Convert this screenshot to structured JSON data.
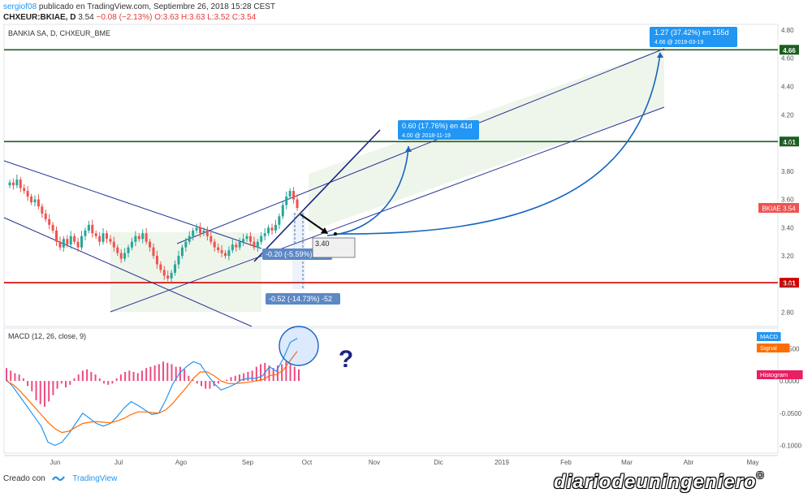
{
  "header": {
    "author": "sergiof08",
    "published": "publicado en TradingView.com, Septiembre 26, 2018 15:28 CEST",
    "symbol": "CHXEUR:BKIAE, D",
    "last": "3.54",
    "change": "−0.08 (−2.13%)",
    "ohlc": "O:3.63 H:3.63 L:3.52 C:3.54"
  },
  "footer": {
    "prefix": "Creado con",
    "brand": "TradingView"
  },
  "watermark": {
    "text": "diariodeuningeniero",
    "mark": "®"
  },
  "chart_data": [
    {
      "type": "candlestick",
      "title": "BANKIA SA, D, CHXEUR_BME",
      "xlabel": "",
      "ylabel": "",
      "x_ticks": [
        "Jun",
        "Jul",
        "Ago",
        "Sep",
        "Oct",
        "Nov",
        "Dic",
        "2019",
        "Feb",
        "Mar",
        "Abr",
        "May"
      ],
      "y_ticks": [
        2.8,
        3.0,
        3.2,
        3.4,
        3.6,
        3.8,
        4.0,
        4.2,
        4.4,
        4.6,
        4.8
      ],
      "ylim": [
        2.7,
        4.84
      ],
      "grid": false,
      "last_price_label": "BKIAE",
      "last_price": 3.54,
      "horizontal_levels": [
        {
          "value": 4.66,
          "label": "4.66",
          "color": "#1b5e20"
        },
        {
          "value": 4.01,
          "label": "4.01",
          "color": "#1b5e20"
        },
        {
          "value": 3.01,
          "label": "3.01",
          "color": "#d50000"
        }
      ],
      "closes": [
        3.72,
        3.7,
        3.74,
        3.68,
        3.66,
        3.62,
        3.58,
        3.6,
        3.55,
        3.5,
        3.46,
        3.42,
        3.38,
        3.3,
        3.26,
        3.32,
        3.28,
        3.34,
        3.3,
        3.26,
        3.34,
        3.38,
        3.42,
        3.36,
        3.34,
        3.3,
        3.36,
        3.32,
        3.3,
        3.26,
        3.22,
        3.18,
        3.22,
        3.26,
        3.3,
        3.34,
        3.32,
        3.36,
        3.3,
        3.26,
        3.2,
        3.14,
        3.1,
        3.06,
        3.04,
        3.08,
        3.14,
        3.2,
        3.26,
        3.3,
        3.34,
        3.38,
        3.4,
        3.36,
        3.38,
        3.34,
        3.3,
        3.26,
        3.24,
        3.22,
        3.2,
        3.24,
        3.28,
        3.26,
        3.3,
        3.32,
        3.34,
        3.3,
        3.26,
        3.3,
        3.34,
        3.36,
        3.4,
        3.38,
        3.42,
        3.48,
        3.56,
        3.62,
        3.66,
        3.6,
        3.54
      ],
      "annotations": [
        {
          "text": "1.27 (37.42%) en 155d",
          "sub": "4.66  @ 2019-03-19"
        },
        {
          "text": "0.60 (17.76%) en 41d",
          "sub": "4.00  @ 2018-11-19"
        },
        {
          "text": "-0.20 (-5.59%) -20"
        },
        {
          "text": "-0.52 (-14.73%) -52"
        },
        {
          "text": "3.40"
        }
      ]
    },
    {
      "type": "line",
      "title": "MACD (12, 26, close, 9)",
      "y_ticks": [
        0.05,
        0.0,
        -0.05,
        -0.1
      ],
      "y_tick_labels": [
        "0.0500",
        "0.0000",
        "-0.0500",
        "-0.1000"
      ],
      "ylim": [
        -0.112,
        0.082
      ],
      "legend": [
        "MACD",
        "Signal",
        "Histogram"
      ],
      "legend_colors": [
        "#2196f3",
        "#ff6d00",
        "#e91e63"
      ],
      "question_mark": "?",
      "series": [
        {
          "name": "MACD",
          "values": [
            0.002,
            -0.01,
            -0.025,
            -0.04,
            -0.055,
            -0.07,
            -0.095,
            -0.1,
            -0.095,
            -0.082,
            -0.066,
            -0.05,
            -0.058,
            -0.066,
            -0.07,
            -0.066,
            -0.055,
            -0.042,
            -0.032,
            -0.038,
            -0.045,
            -0.052,
            -0.05,
            -0.03,
            -0.005,
            0.012,
            0.022,
            0.03,
            0.026,
            0.01,
            -0.004,
            -0.014,
            -0.01,
            -0.005,
            0.002,
            0.004,
            0.004,
            0.008,
            0.022,
            0.015,
            0.035,
            0.06,
            0.066
          ]
        },
        {
          "name": "Signal",
          "values": [
            0.0,
            -0.006,
            -0.016,
            -0.028,
            -0.04,
            -0.052,
            -0.064,
            -0.074,
            -0.08,
            -0.078,
            -0.072,
            -0.066,
            -0.064,
            -0.063,
            -0.064,
            -0.065,
            -0.062,
            -0.058,
            -0.052,
            -0.048,
            -0.048,
            -0.049,
            -0.05,
            -0.045,
            -0.035,
            -0.022,
            -0.01,
            0.004,
            0.014,
            0.014,
            0.008,
            0.0,
            -0.004,
            -0.004,
            -0.003,
            -0.002,
            0.0,
            0.002,
            0.008,
            0.01,
            0.017,
            0.032,
            0.046
          ]
        },
        {
          "name": "Histogram",
          "values": [
            0.02,
            0.016,
            0.012,
            0.01,
            0.004,
            -0.008,
            -0.016,
            -0.03,
            -0.036,
            -0.04,
            -0.032,
            -0.022,
            -0.012,
            -0.004,
            -0.01,
            -0.006,
            0.004,
            0.01,
            0.016,
            0.018,
            0.014,
            0.01,
            0.004,
            -0.004,
            -0.006,
            -0.004,
            0.004,
            0.01,
            0.014,
            0.016,
            0.014,
            0.012,
            0.016,
            0.02,
            0.022,
            0.024,
            0.026,
            0.03,
            0.028,
            0.026,
            0.022,
            0.022,
            0.018,
            0.008,
            0.002,
            -0.004,
            -0.008,
            -0.012,
            -0.012,
            -0.008,
            -0.004,
            0.0,
            0.002,
            0.006,
            0.008,
            0.01,
            0.012,
            0.014,
            0.016,
            0.022,
            0.026,
            0.028,
            0.024,
            0.02,
            0.024,
            0.026,
            0.03,
            0.026,
            0.022,
            0.018
          ]
        }
      ]
    }
  ]
}
